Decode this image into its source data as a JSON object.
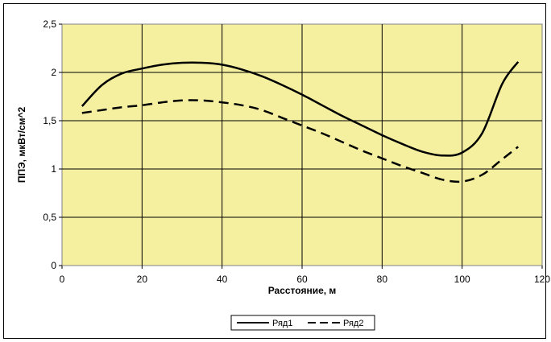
{
  "chart_data": {
    "type": "line",
    "title": "",
    "xlabel": "Расстояние, м",
    "ylabel": "ППЭ, мкВт/см^2",
    "xlim": [
      0,
      120
    ],
    "ylim": [
      0,
      2.5
    ],
    "x_ticks": [
      "0",
      "20",
      "40",
      "60",
      "80",
      "100",
      "120"
    ],
    "y_ticks": [
      "0",
      "0,5",
      "1",
      "1,5",
      "2",
      "2,5"
    ],
    "grid": true,
    "plot_background": "#f5f0a0",
    "legend_position": "bottom",
    "series": [
      {
        "name": "Ряд1",
        "style": "solid",
        "color": "#000000",
        "x": [
          5,
          10,
          15,
          20,
          25,
          30,
          35,
          40,
          45,
          50,
          55,
          60,
          65,
          70,
          75,
          80,
          85,
          90,
          95,
          100,
          105,
          110,
          114
        ],
        "y": [
          1.65,
          1.87,
          1.99,
          2.04,
          2.08,
          2.1,
          2.1,
          2.08,
          2.03,
          1.96,
          1.87,
          1.77,
          1.66,
          1.55,
          1.45,
          1.35,
          1.26,
          1.18,
          1.14,
          1.17,
          1.37,
          1.88,
          2.11
        ]
      },
      {
        "name": "Ряд2",
        "style": "dashed",
        "color": "#000000",
        "x": [
          5,
          10,
          15,
          20,
          25,
          30,
          35,
          40,
          45,
          50,
          55,
          60,
          65,
          70,
          75,
          80,
          85,
          90,
          95,
          100,
          105,
          110,
          114
        ],
        "y": [
          1.58,
          1.61,
          1.64,
          1.66,
          1.69,
          1.71,
          1.71,
          1.69,
          1.66,
          1.61,
          1.53,
          1.45,
          1.37,
          1.28,
          1.19,
          1.11,
          1.03,
          0.96,
          0.89,
          0.87,
          0.94,
          1.1,
          1.23
        ]
      }
    ]
  }
}
